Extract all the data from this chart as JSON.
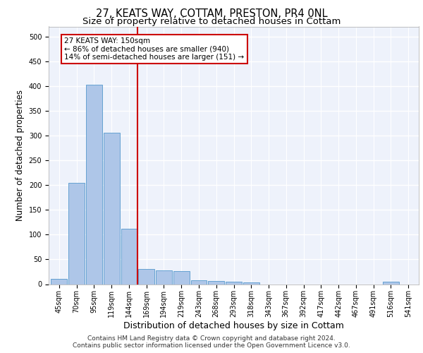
{
  "title": "27, KEATS WAY, COTTAM, PRESTON, PR4 0NL",
  "subtitle": "Size of property relative to detached houses in Cottam",
  "xlabel": "Distribution of detached houses by size in Cottam",
  "ylabel": "Number of detached properties",
  "bar_labels": [
    "45sqm",
    "70sqm",
    "95sqm",
    "119sqm",
    "144sqm",
    "169sqm",
    "194sqm",
    "219sqm",
    "243sqm",
    "268sqm",
    "293sqm",
    "318sqm",
    "343sqm",
    "367sqm",
    "392sqm",
    "417sqm",
    "442sqm",
    "467sqm",
    "491sqm",
    "516sqm",
    "541sqm"
  ],
  "bar_values": [
    10,
    205,
    403,
    305,
    112,
    30,
    28,
    26,
    8,
    7,
    5,
    4,
    0,
    0,
    0,
    0,
    0,
    0,
    0,
    5,
    0
  ],
  "bar_color": "#aec6e8",
  "bar_edge_color": "#5599cc",
  "vline_x": 4.5,
  "vline_color": "#cc0000",
  "annotation_line1": "27 KEATS WAY: 150sqm",
  "annotation_line2": "← 86% of detached houses are smaller (940)",
  "annotation_line3": "14% of semi-detached houses are larger (151) →",
  "annotation_box_color": "#ffffff",
  "annotation_box_edge_color": "#cc0000",
  "ylim": [
    0,
    520
  ],
  "yticks": [
    0,
    50,
    100,
    150,
    200,
    250,
    300,
    350,
    400,
    450,
    500
  ],
  "footer1": "Contains HM Land Registry data © Crown copyright and database right 2024.",
  "footer2": "Contains public sector information licensed under the Open Government Licence v3.0.",
  "background_color": "#eef2fb",
  "grid_color": "#ffffff",
  "title_fontsize": 10.5,
  "subtitle_fontsize": 9.5,
  "axis_label_fontsize": 8.5,
  "tick_fontsize": 7,
  "annotation_fontsize": 7.5,
  "footer_fontsize": 6.5
}
